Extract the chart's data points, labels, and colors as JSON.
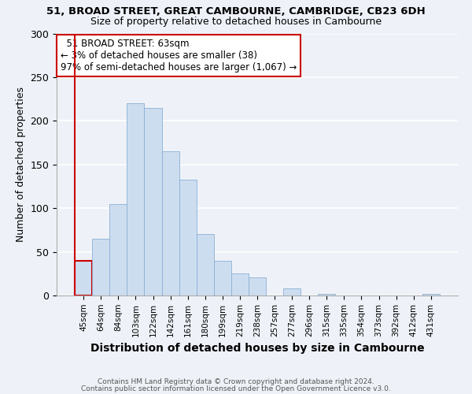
{
  "title_line1": "51, BROAD STREET, GREAT CAMBOURNE, CAMBRIDGE, CB23 6DH",
  "title_line2": "Size of property relative to detached houses in Cambourne",
  "xlabel": "Distribution of detached houses by size in Cambourne",
  "ylabel": "Number of detached properties",
  "bar_labels": [
    "45sqm",
    "64sqm",
    "84sqm",
    "103sqm",
    "122sqm",
    "142sqm",
    "161sqm",
    "180sqm",
    "199sqm",
    "219sqm",
    "238sqm",
    "257sqm",
    "277sqm",
    "296sqm",
    "315sqm",
    "335sqm",
    "354sqm",
    "373sqm",
    "392sqm",
    "412sqm",
    "431sqm"
  ],
  "bar_values": [
    40,
    65,
    105,
    220,
    215,
    165,
    133,
    70,
    40,
    25,
    21,
    0,
    8,
    0,
    2,
    0,
    0,
    0,
    0,
    0,
    2
  ],
  "bar_color": "#cdddf0",
  "bar_edge_color": "#8aafd4",
  "highlight_edge_color": "#cc0000",
  "annotation_title": "51 BROAD STREET: 63sqm",
  "annotation_line2": "← 3% of detached houses are smaller (38)",
  "annotation_line3": "97% of semi-detached houses are larger (1,067) →",
  "annotation_box_edge_color": "#cc0000",
  "annotation_box_face_color": "#ffffff",
  "ylim": [
    0,
    300
  ],
  "yticks": [
    0,
    50,
    100,
    150,
    200,
    250,
    300
  ],
  "footer_line1": "Contains HM Land Registry data © Crown copyright and database right 2024.",
  "footer_line2": "Contains public sector information licensed under the Open Government Licence v3.0.",
  "background_color": "#eef2f8"
}
